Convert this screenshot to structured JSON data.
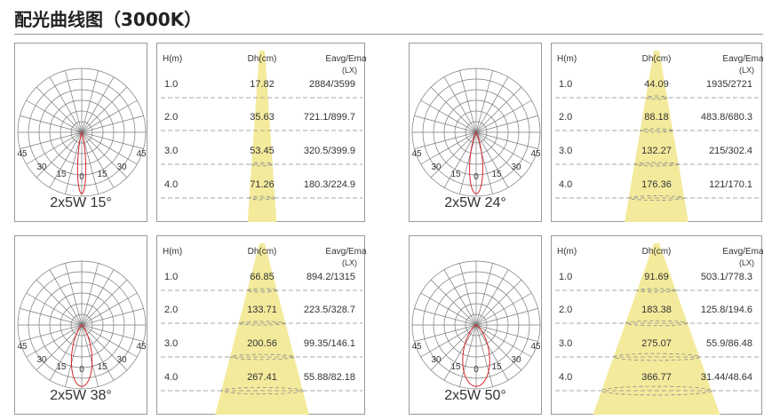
{
  "title": "配光曲线图（3000K）",
  "colors": {
    "beam": "#f3ea9c",
    "curve": "#d4252a",
    "grid": "#7a7a7a",
    "dash": "#8a8a8a",
    "border": "#9a9a9a"
  },
  "diagrams": [
    {
      "id": "15",
      "label": "2x5W 15°",
      "beam_angle_deg": 15,
      "polar_ticks": [
        "45",
        "30",
        "15",
        "0",
        "15",
        "30",
        "45"
      ],
      "headers": {
        "h": "H(m)",
        "dh": "Dh(cm)",
        "eavg": "Eavg/Emax",
        "unit": "(LX)"
      },
      "rows": [
        {
          "h": "1.0",
          "dh": "17.82",
          "eavg": "2884/3599"
        },
        {
          "h": "2.0",
          "dh": "35.63",
          "eavg": "721.1/899.7"
        },
        {
          "h": "3.0",
          "dh": "53.45",
          "eavg": "320.5/399.9"
        },
        {
          "h": "4.0",
          "dh": "71.26",
          "eavg": "180.3/224.9"
        }
      ]
    },
    {
      "id": "24",
      "label": "2x5W 24°",
      "beam_angle_deg": 24,
      "polar_ticks": [
        "45",
        "30",
        "15",
        "0",
        "15",
        "30",
        "45"
      ],
      "headers": {
        "h": "H(m)",
        "dh": "Dh(cm)",
        "eavg": "Eavg/Emax",
        "unit": "(LX)"
      },
      "rows": [
        {
          "h": "1.0",
          "dh": "44.09",
          "eavg": "1935/2721"
        },
        {
          "h": "2.0",
          "dh": "88.18",
          "eavg": "483.8/680.3"
        },
        {
          "h": "3.0",
          "dh": "132.27",
          "eavg": "215/302.4"
        },
        {
          "h": "4.0",
          "dh": "176.36",
          "eavg": "121/170.1"
        }
      ]
    },
    {
      "id": "38",
      "label": "2x5W 38°",
      "beam_angle_deg": 38,
      "polar_ticks": [
        "45",
        "30",
        "15",
        "0",
        "15",
        "30",
        "45"
      ],
      "headers": {
        "h": "H(m)",
        "dh": "Dh(cm)",
        "eavg": "Eavg/Emax",
        "unit": "(LX)"
      },
      "rows": [
        {
          "h": "1.0",
          "dh": "66.85",
          "eavg": "894.2/1315"
        },
        {
          "h": "2.0",
          "dh": "133.71",
          "eavg": "223.5/328.7"
        },
        {
          "h": "3.0",
          "dh": "200.56",
          "eavg": "99.35/146.1"
        },
        {
          "h": "4.0",
          "dh": "267.41",
          "eavg": "55.88/82.18"
        }
      ]
    },
    {
      "id": "50",
      "label": "2x5W 50°",
      "beam_angle_deg": 50,
      "polar_ticks": [
        "45",
        "30",
        "15",
        "0",
        "15",
        "30",
        "45"
      ],
      "headers": {
        "h": "H(m)",
        "dh": "Dh(cm)",
        "eavg": "Eavg/Emax",
        "unit": "(LX)"
      },
      "rows": [
        {
          "h": "1.0",
          "dh": "91.69",
          "eavg": "503.1/778.3"
        },
        {
          "h": "2.0",
          "dh": "183.38",
          "eavg": "125.8/194.6"
        },
        {
          "h": "3.0",
          "dh": "275.07",
          "eavg": "55.9/86.48"
        },
        {
          "h": "4.0",
          "dh": "366.77",
          "eavg": "31.44/48.64"
        }
      ]
    }
  ]
}
